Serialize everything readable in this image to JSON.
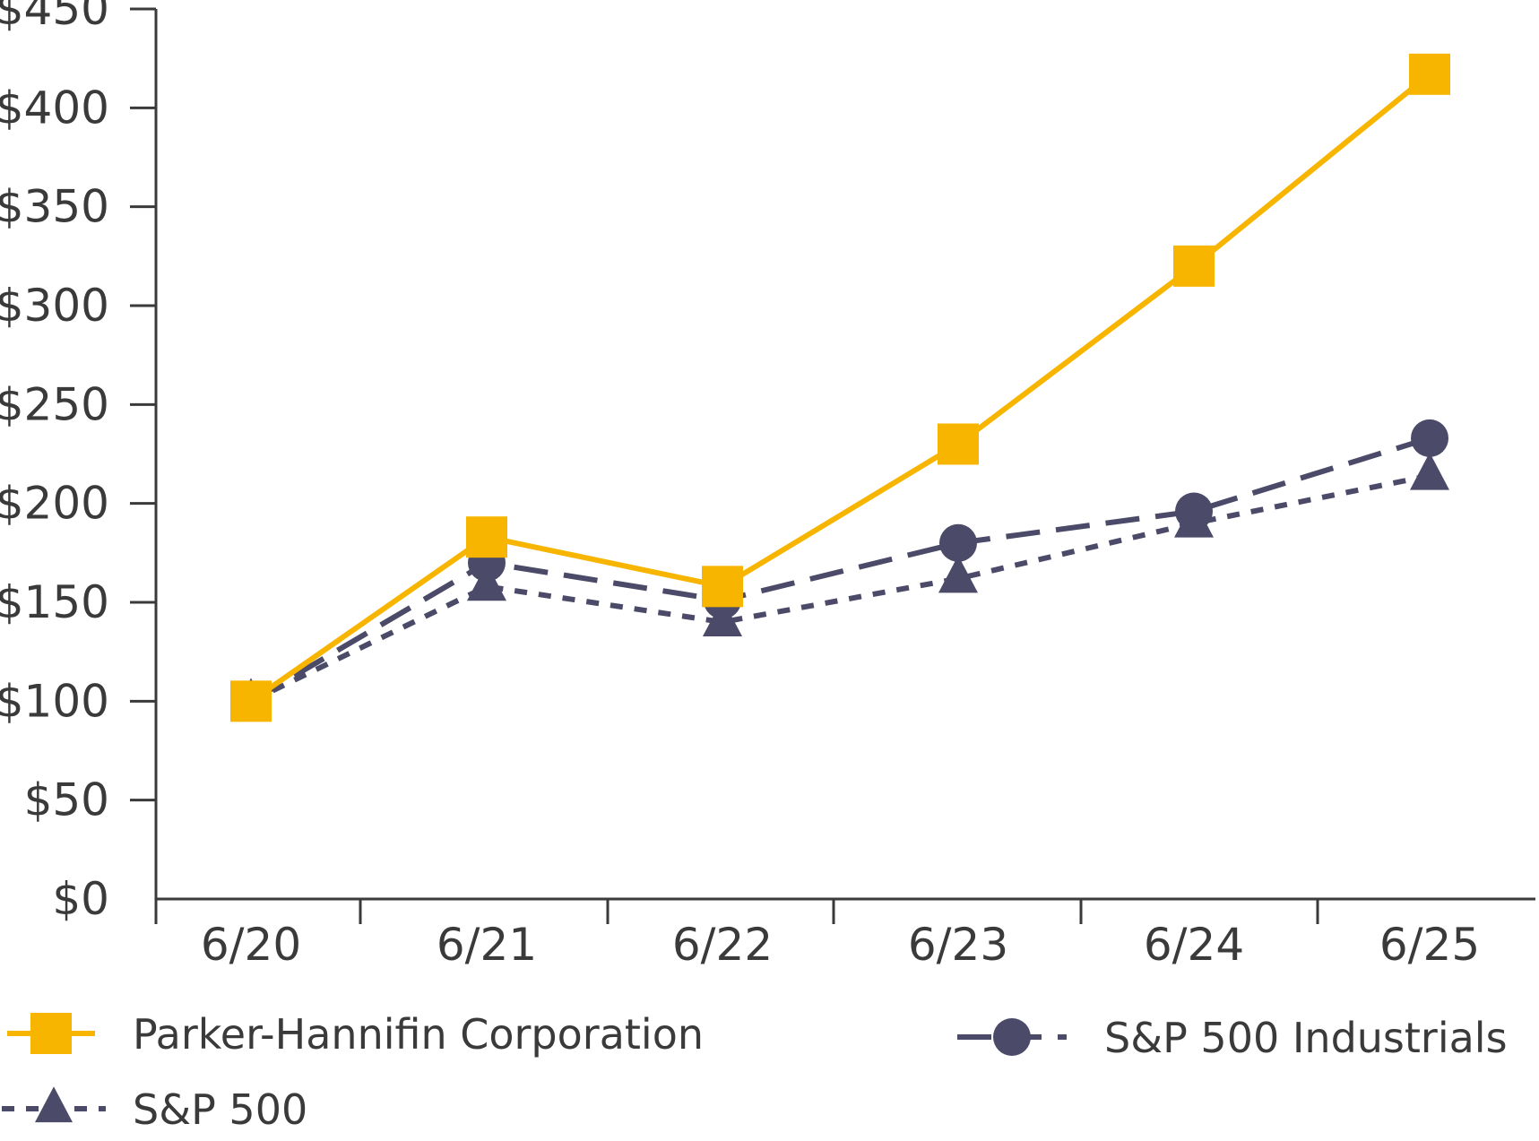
{
  "chart_data": {
    "type": "line",
    "title": "",
    "xlabel": "",
    "ylabel": "",
    "categories": [
      "6/20",
      "6/21",
      "6/22",
      "6/23",
      "6/24",
      "6/25"
    ],
    "ylim": [
      0,
      450
    ],
    "yticks": [
      0,
      50,
      100,
      150,
      200,
      250,
      300,
      350,
      400,
      450
    ],
    "ytick_labels": [
      "$0",
      "$50",
      "$100",
      "$150",
      "$200",
      "$250",
      "$300",
      "$350",
      "$400",
      "$450"
    ],
    "grid": false,
    "legend_position": "bottom",
    "series": [
      {
        "name": "Parker-Hannifin Corporation",
        "values": [
          100,
          183,
          158,
          230,
          320,
          417
        ],
        "color": "#F7B500",
        "marker": "square",
        "line_style": "solid"
      },
      {
        "name": "S&P 500 Industrials",
        "values": [
          100,
          170,
          151,
          180,
          196,
          233
        ],
        "color": "#4B4A68",
        "marker": "circle",
        "line_style": "dashed"
      },
      {
        "name": "S&P 500",
        "values": [
          100,
          158,
          140,
          162,
          190,
          214
        ],
        "color": "#4B4A68",
        "marker": "triangle",
        "line_style": "dotted"
      }
    ]
  }
}
